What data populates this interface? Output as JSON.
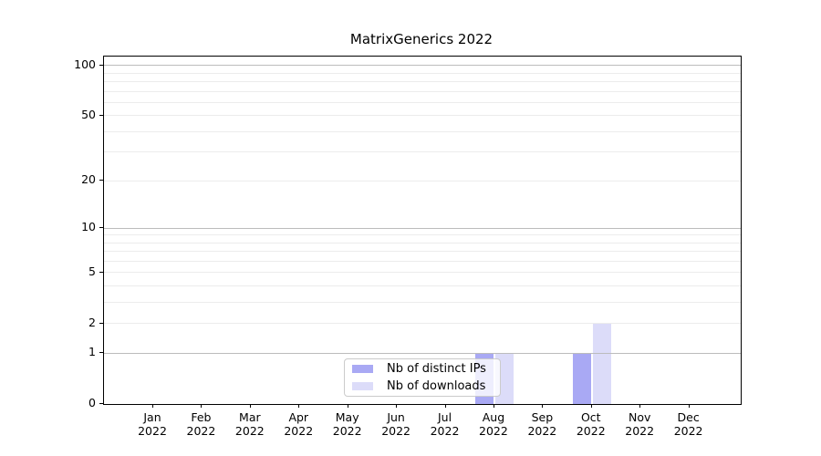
{
  "chart_data": {
    "type": "bar",
    "title": "MatrixGenerics 2022",
    "categories": [
      "Jan 2022",
      "Feb 2022",
      "Mar 2022",
      "Apr 2022",
      "May 2022",
      "Jun 2022",
      "Jul 2022",
      "Aug 2022",
      "Sep 2022",
      "Oct 2022",
      "Nov 2022",
      "Dec 2022"
    ],
    "x_tick_months": [
      "Jan",
      "Feb",
      "Mar",
      "Apr",
      "May",
      "Jun",
      "Jul",
      "Aug",
      "Sep",
      "Oct",
      "Nov",
      "Dec"
    ],
    "x_tick_year": "2022",
    "series": [
      {
        "name": "Nb of distinct IPs",
        "color": "#a9a9f4",
        "values": [
          0,
          0,
          0,
          0,
          0,
          0,
          0,
          1,
          0,
          1,
          0,
          0
        ]
      },
      {
        "name": "Nb of downloads",
        "color": "#dcdcf9",
        "values": [
          0,
          0,
          0,
          0,
          0,
          0,
          0,
          1,
          0,
          2,
          0,
          0
        ]
      }
    ],
    "xlabel": "",
    "ylabel": "",
    "yscale": "log1p",
    "ylim": [
      0,
      113
    ],
    "yticks": [
      0,
      1,
      2,
      5,
      10,
      20,
      50,
      100
    ],
    "minor_yticks": [
      3,
      4,
      6,
      7,
      8,
      9,
      30,
      40,
      60,
      70,
      80,
      90
    ],
    "grid": "horizontal, drawn above bars",
    "legend_position": "lower center-left inside plot"
  },
  "legend": {
    "items": [
      {
        "label": "Nb of distinct IPs",
        "color": "#a9a9f4"
      },
      {
        "label": "Nb of downloads",
        "color": "#dcdcf9"
      }
    ]
  },
  "colors": {
    "decade_grid": "#bcbcbc",
    "minor_grid": "#ececec",
    "axis": "#000000",
    "background": "#ffffff",
    "text": "#000000"
  }
}
